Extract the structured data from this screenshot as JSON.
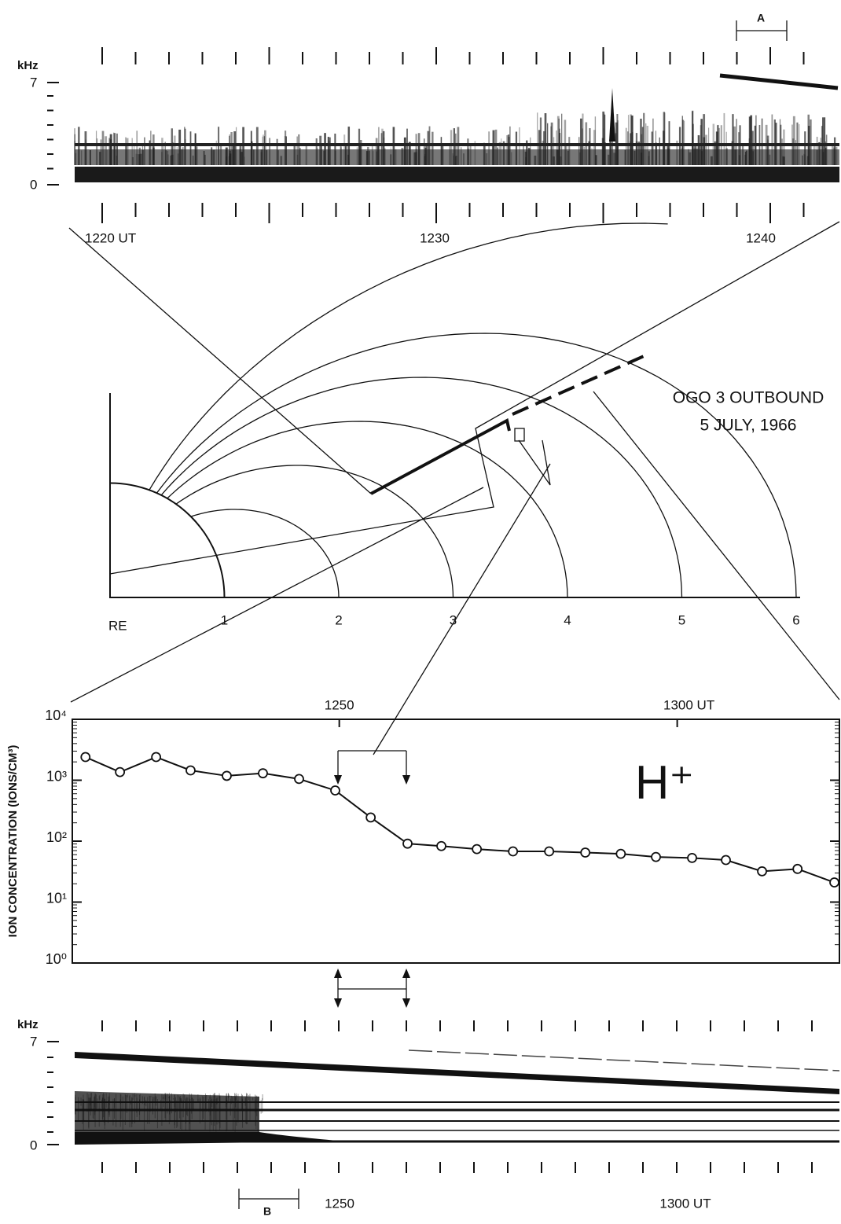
{
  "top_spectrogram": {
    "unit": "kHz",
    "top_label": "7",
    "bottom_label": "0",
    "time_labels": [
      "1220 UT",
      "1230",
      "1240"
    ],
    "interval_label": "A"
  },
  "diagram": {
    "title_line1": "OGO 3 OUTBOUND",
    "title_line2": "5 JULY, 1966",
    "origin_label": "RE",
    "distance_labels": [
      "1",
      "2",
      "3",
      "4",
      "5",
      "6"
    ]
  },
  "chart_data": {
    "type": "line",
    "ylabel": "ION CONCENTRATION (IONS/CM³)",
    "annotation": "H⁺",
    "log_y": true,
    "xlim": [
      42.1,
      64.8
    ],
    "xticks": [
      {
        "value": 50,
        "label": "1250"
      },
      {
        "value": 60,
        "label": "1300 UT"
      }
    ],
    "ylim": [
      1,
      10000
    ],
    "yticks": [
      {
        "value": 1,
        "label": "10⁰"
      },
      {
        "value": 10,
        "label": "10¹"
      },
      {
        "value": 100,
        "label": "10²"
      },
      {
        "value": 1000,
        "label": "10³"
      },
      {
        "value": 10000,
        "label": "10⁴"
      }
    ],
    "x": [
      42.49,
      43.51,
      44.58,
      45.6,
      46.67,
      47.74,
      48.81,
      49.88,
      50.93,
      52.02,
      53.02,
      54.07,
      55.14,
      56.21,
      57.28,
      58.33,
      59.37,
      60.44,
      61.44,
      62.51,
      63.56,
      64.65
    ],
    "series": [
      {
        "name": "H+",
        "color": "#111111",
        "values": [
          2400,
          1360,
          2400,
          1450,
          1180,
          1300,
          1050,
          680,
          245,
          91,
          83,
          74,
          68,
          68,
          65,
          62,
          55,
          53,
          49,
          32,
          35,
          21
        ]
      }
    ]
  },
  "bottom_spectrogram": {
    "unit": "kHz",
    "top_label": "7",
    "bottom_label": "0",
    "time_labels": [
      "1250",
      "1300 UT"
    ],
    "interval_label": "B"
  }
}
